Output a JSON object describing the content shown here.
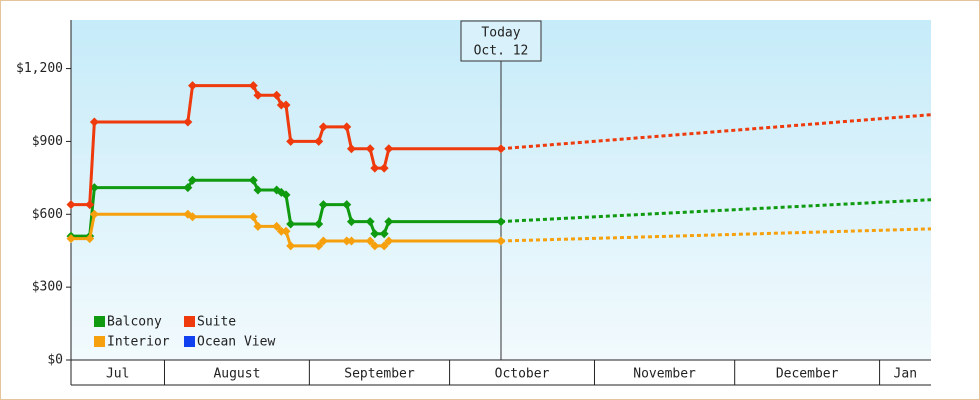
{
  "chart_data": {
    "type": "line",
    "xlim": [
      11,
      195
    ],
    "xticks": [
      {
        "value": 0,
        "label": "Jul"
      },
      {
        "value": 31,
        "label": "August"
      },
      {
        "value": 62,
        "label": "September"
      },
      {
        "value": 92,
        "label": "October"
      },
      {
        "value": 123,
        "label": "November"
      },
      {
        "value": 153,
        "label": "December"
      },
      {
        "value": 184,
        "label": "Jan"
      }
    ],
    "ylim": [
      0,
      1400
    ],
    "yticks": [
      {
        "value": 0,
        "label": "$0"
      },
      {
        "value": 300,
        "label": "$300"
      },
      {
        "value": 600,
        "label": "$600"
      },
      {
        "value": 900,
        "label": "$900"
      },
      {
        "value": 1200,
        "label": "$1,200"
      }
    ],
    "annotation": {
      "x": 103,
      "lines": [
        "Today",
        "Oct. 12"
      ]
    },
    "series": [
      {
        "name": "Balcony",
        "color": "#109a10",
        "x": [
          11,
          15,
          16,
          36,
          37,
          50,
          51,
          55,
          56,
          57,
          58,
          64,
          65,
          70,
          71,
          75,
          76,
          78,
          79,
          103
        ],
        "values": [
          510,
          510,
          710,
          710,
          740,
          740,
          700,
          700,
          690,
          680,
          560,
          560,
          640,
          640,
          570,
          570,
          520,
          520,
          570,
          570
        ],
        "forecast_x": [
          103,
          195
        ],
        "forecast_values": [
          570,
          660
        ]
      },
      {
        "name": "Suite",
        "color": "#ee3a0c",
        "x": [
          11,
          15,
          16,
          36,
          37,
          50,
          51,
          55,
          56,
          57,
          58,
          64,
          65,
          70,
          71,
          75,
          76,
          78,
          79,
          103
        ],
        "values": [
          640,
          640,
          980,
          980,
          1130,
          1130,
          1090,
          1090,
          1050,
          1050,
          900,
          900,
          960,
          960,
          870,
          870,
          790,
          790,
          870,
          870
        ],
        "forecast_x": [
          103,
          195
        ],
        "forecast_values": [
          870,
          1010
        ]
      },
      {
        "name": "Interior",
        "color": "#f5a00c",
        "x": [
          11,
          15,
          16,
          36,
          37,
          50,
          51,
          55,
          56,
          57,
          58,
          64,
          65,
          70,
          71,
          75,
          76,
          78,
          79,
          103
        ],
        "values": [
          500,
          500,
          600,
          600,
          590,
          590,
          550,
          550,
          530,
          530,
          470,
          470,
          490,
          490,
          490,
          490,
          470,
          470,
          490,
          490
        ],
        "forecast_x": [
          103,
          195
        ],
        "forecast_values": [
          490,
          540
        ]
      },
      {
        "name": "Ocean View",
        "color": "#1040f0",
        "x": [],
        "values": [],
        "forecast_x": [],
        "forecast_values": []
      }
    ]
  }
}
